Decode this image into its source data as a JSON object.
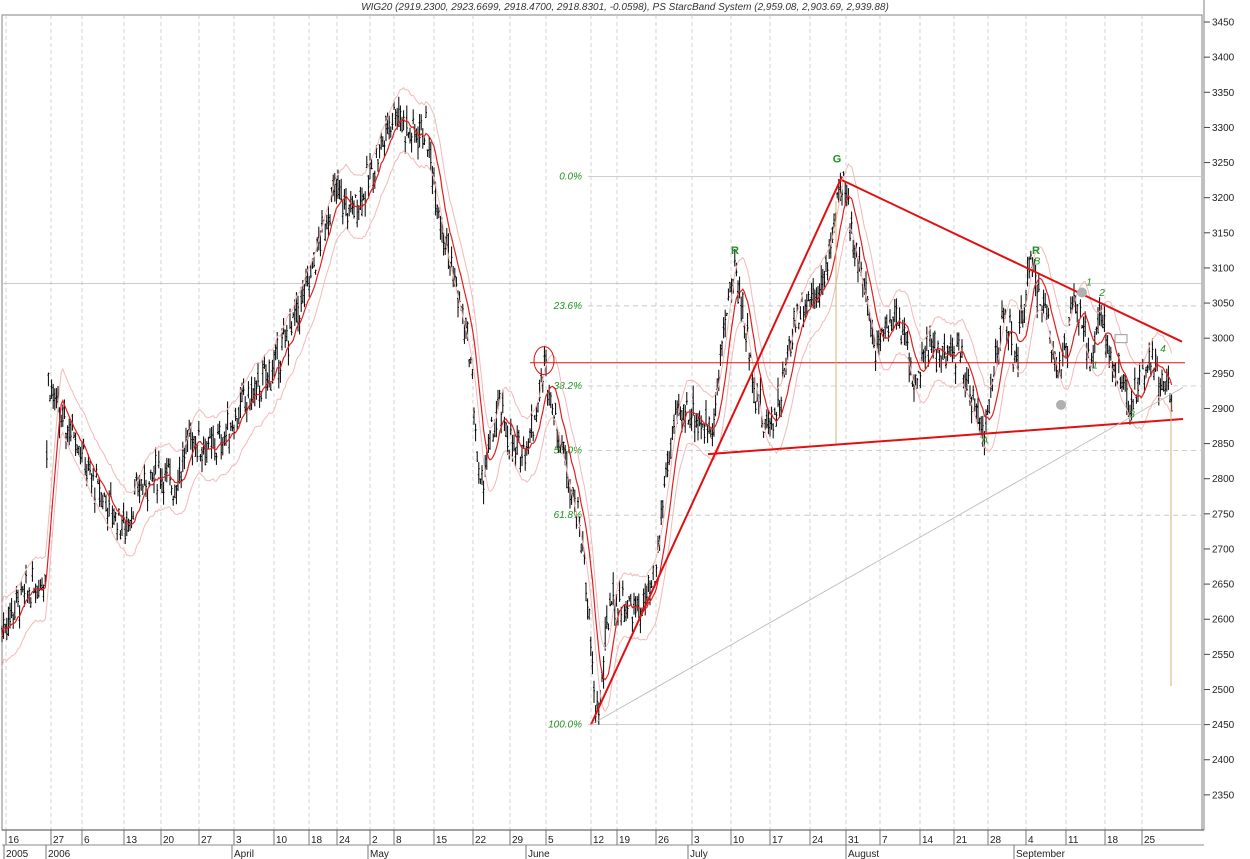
{
  "title": "WIG20 (2919.2300, 2923.6699, 2918.4700, 2918.8301, -0.0598), PS StarcBand System  (2,959.08, 2,903.69, 2,939.88)",
  "chart_data": {
    "type": "candlestick",
    "instrument": "WIG20",
    "ylim": [
      2300,
      3460
    ],
    "y_ticks": [
      2350,
      2400,
      2450,
      2500,
      2550,
      2600,
      2650,
      2700,
      2750,
      2800,
      2850,
      2900,
      2950,
      3000,
      3050,
      3100,
      3150,
      3200,
      3250,
      3300,
      3350,
      3400,
      3450
    ],
    "x_ticks": [
      "16",
      "27",
      "6",
      "13",
      "20",
      "27",
      "3",
      "10",
      "18",
      "24",
      "2",
      "8",
      "15",
      "22",
      "29",
      "5",
      "12",
      "19",
      "26",
      "3",
      "10",
      "17",
      "24",
      "31",
      "7",
      "14",
      "21",
      "28",
      "4",
      "11",
      "18",
      "25"
    ],
    "months": [
      "2005",
      "2006",
      "April",
      "May",
      "June",
      "July",
      "August",
      "September"
    ],
    "price_path_approx": [
      [
        0,
        2580
      ],
      [
        15,
        2620
      ],
      [
        30,
        2640
      ],
      [
        45,
        2660
      ],
      [
        48,
        2950
      ],
      [
        60,
        2880
      ],
      [
        75,
        2870
      ],
      [
        90,
        2800
      ],
      [
        110,
        2760
      ],
      [
        125,
        2730
      ],
      [
        140,
        2790
      ],
      [
        160,
        2810
      ],
      [
        175,
        2790
      ],
      [
        190,
        2860
      ],
      [
        210,
        2840
      ],
      [
        225,
        2860
      ],
      [
        240,
        2900
      ],
      [
        260,
        2930
      ],
      [
        275,
        2960
      ],
      [
        290,
        3010
      ],
      [
        305,
        3060
      ],
      [
        320,
        3140
      ],
      [
        335,
        3210
      ],
      [
        350,
        3180
      ],
      [
        365,
        3210
      ],
      [
        380,
        3270
      ],
      [
        395,
        3330
      ],
      [
        410,
        3290
      ],
      [
        425,
        3300
      ],
      [
        440,
        3180
      ],
      [
        455,
        3080
      ],
      [
        470,
        2980
      ],
      [
        480,
        2780
      ],
      [
        490,
        2850
      ],
      [
        500,
        2900
      ],
      [
        515,
        2830
      ],
      [
        530,
        2860
      ],
      [
        545,
        2960
      ],
      [
        555,
        2890
      ],
      [
        565,
        2830
      ],
      [
        575,
        2770
      ],
      [
        585,
        2680
      ],
      [
        595,
        2470
      ],
      [
        600,
        2480
      ],
      [
        610,
        2630
      ],
      [
        625,
        2620
      ],
      [
        640,
        2610
      ],
      [
        655,
        2650
      ],
      [
        665,
        2800
      ],
      [
        675,
        2880
      ],
      [
        690,
        2900
      ],
      [
        705,
        2870
      ],
      [
        715,
        2890
      ],
      [
        725,
        3030
      ],
      [
        735,
        3100
      ],
      [
        745,
        3020
      ],
      [
        755,
        2930
      ],
      [
        765,
        2870
      ],
      [
        780,
        2910
      ],
      [
        795,
        3030
      ],
      [
        810,
        3060
      ],
      [
        825,
        3080
      ],
      [
        835,
        3180
      ],
      [
        843,
        3215
      ],
      [
        853,
        3150
      ],
      [
        863,
        3080
      ],
      [
        875,
        2990
      ],
      [
        890,
        3030
      ],
      [
        905,
        3010
      ],
      [
        915,
        2930
      ],
      [
        930,
        2990
      ],
      [
        945,
        2970
      ],
      [
        960,
        2980
      ],
      [
        975,
        2900
      ],
      [
        985,
        2870
      ],
      [
        995,
        2960
      ],
      [
        1005,
        3040
      ],
      [
        1015,
        2960
      ],
      [
        1030,
        3100
      ],
      [
        1045,
        3040
      ],
      [
        1060,
        2950
      ],
      [
        1075,
        3050
      ],
      [
        1090,
        2970
      ],
      [
        1100,
        3040
      ],
      [
        1110,
        2970
      ],
      [
        1120,
        2940
      ],
      [
        1130,
        2900
      ],
      [
        1140,
        2940
      ],
      [
        1155,
        2960
      ],
      [
        1165,
        2930
      ],
      [
        1172,
        2918.83
      ]
    ],
    "trend_lines": [
      {
        "from": [
          2450,
          "Jun 12"
        ],
        "to": [
          3230,
          "Jul 31"
        ]
      },
      {
        "from": [
          3230,
          "Jul 31"
        ],
        "to": [
          2995,
          "end"
        ]
      },
      {
        "from": [
          2835,
          "Jul 4"
        ],
        "to": [
          2885,
          "end"
        ]
      },
      {
        "from": [
          2965,
          "Jun 5"
        ],
        "to": [
          2965,
          "end"
        ]
      }
    ],
    "fibonacci": [
      {
        "label": "0.0%",
        "value": 3230
      },
      {
        "label": "23.6%",
        "value": 3046
      },
      {
        "label": "38.2%",
        "value": 2932
      },
      {
        "label": "50.0%",
        "value": 2840
      },
      {
        "label": "61.8%",
        "value": 2748
      },
      {
        "label": "100.0%",
        "value": 2450
      }
    ],
    "wave_labels": [
      "G",
      "R",
      "R",
      "A",
      "B",
      "1",
      "2",
      "3",
      "4",
      "1"
    ],
    "indicator": "PS StarcBand System",
    "indicator_values": [
      2959.08,
      2903.69,
      2939.88
    ]
  },
  "colors": {
    "candles": "#000000",
    "moving_avg": "#e02020",
    "bands": "#f4b8b8",
    "trend": "#e01010",
    "grid": "#c8c8c8",
    "fib_line": "#c8c8c8",
    "fib_text": "#1f8f1f",
    "vertical_marker": "#d8b070"
  }
}
